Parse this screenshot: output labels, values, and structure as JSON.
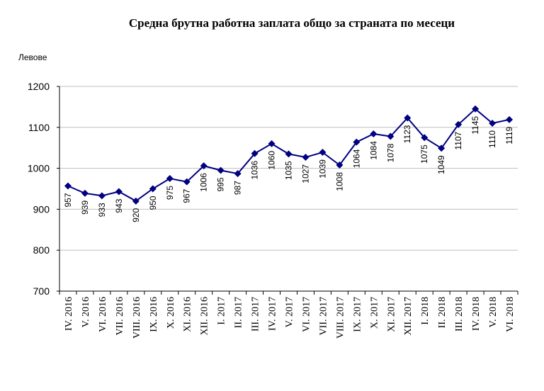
{
  "chart_data": {
    "type": "line",
    "title": "Средна брутна работна заплата общо за страната по месеци",
    "ylabel": "Левове",
    "ylim": [
      700,
      1200
    ],
    "yticks": [
      700,
      800,
      900,
      1000,
      1100,
      1200
    ],
    "grid": true,
    "categories": [
      "IV. 2016",
      "V. 2016",
      "VI. 2016",
      "VII. 2016",
      "VIII. 2016",
      "IX. 2016",
      "X. 2016",
      "XI. 2016",
      "XII. 2016",
      "I. 2017",
      "II. 2017",
      "III. 2017",
      "IV. 2017",
      "V. 2017",
      "VI. 2017",
      "VII. 2017",
      "VIII. 2017",
      "IX. 2017",
      "X. 2017",
      "XI. 2017",
      "XII. 2017",
      "I. 2018",
      "II. 2018",
      "III. 2018",
      "IV. 2018",
      "V. 2018",
      "VI. 2018"
    ],
    "values": [
      957,
      939,
      933,
      943,
      920,
      950,
      975,
      967,
      1006,
      995,
      987,
      1036,
      1060,
      1035,
      1027,
      1039,
      1008,
      1064,
      1084,
      1078,
      1123,
      1075,
      1049,
      1107,
      1145,
      1110,
      1119
    ],
    "colors": {
      "series": "#000080",
      "grid": "#bfbfbf"
    }
  }
}
